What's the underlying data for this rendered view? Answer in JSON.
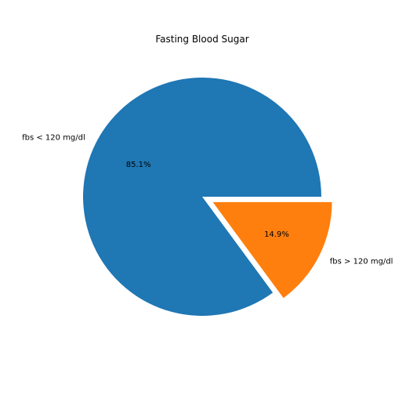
{
  "chart_data": {
    "type": "pie",
    "title": "Fasting Blood Sugar",
    "slices": [
      {
        "label": "fbs < 120 mg/dl",
        "value": 85.1,
        "pct_label": "85.1%",
        "color": "#1f77b4",
        "explode": 0
      },
      {
        "label": "fbs > 120 mg/dl",
        "value": 14.9,
        "pct_label": "14.9%",
        "color": "#ff7f0e",
        "explode": 0.1
      }
    ],
    "start_angle_deg": 0,
    "counterclockwise": true
  }
}
